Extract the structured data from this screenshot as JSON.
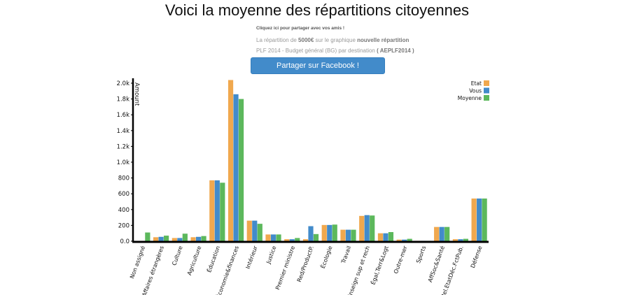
{
  "page": {
    "title": "Voici la moyenne des répartitions citoyennes",
    "share_link": "Cliquez ici pour partager avec vos amis !",
    "repartition": {
      "prefix": "La répartition de ",
      "amount": "5000€",
      "middle": " sur le graphique ",
      "highlight": "nouvelle répartition"
    },
    "plf": {
      "text": "PLF 2014 - Budget général (BG) par destination ",
      "code": "( AEPLF2014 )"
    },
    "facebook_button": "Partager sur Facebook !"
  },
  "colors": {
    "etat": "#f0a84e",
    "vous": "#428bca",
    "moyenne": "#5cb85c",
    "axis": "#000000"
  },
  "chart_data": {
    "type": "bar",
    "ylabel": "Amount",
    "ylim": [
      0,
      2000
    ],
    "yticks": [
      0,
      200,
      400,
      600,
      800,
      1000,
      1200,
      1400,
      1600,
      1800,
      2000
    ],
    "ytick_labels": [
      "0.0",
      "200",
      "400",
      "600",
      "800",
      "1.0k",
      "1.2k",
      "1.4k",
      "1.6k",
      "1.8k",
      "2.0k"
    ],
    "legend_position": "top-right",
    "categories": [
      "Non assigné",
      "Affaires étrangères",
      "Culture",
      "Agriculture",
      "Éducation",
      "Économie&finances",
      "Intérieur",
      "Justice",
      "Premier ministre",
      "Red/ProductP.",
      "Écologie",
      "Travail",
      "Enseign sup et rech",
      "Égal,Terr&Logt",
      "Outre-mer",
      "Sports",
      "AffSoc&Santé",
      "Rel.EtatDéc.FctPub.",
      "Défense"
    ],
    "series": [
      {
        "name": "Etat",
        "color_key": "etat",
        "values": [
          0,
          50,
          40,
          50,
          770,
          2040,
          260,
          85,
          25,
          25,
          205,
          145,
          320,
          100,
          20,
          5,
          180,
          25,
          540
        ]
      },
      {
        "name": "Vous",
        "color_key": "vous",
        "values": [
          0,
          55,
          40,
          55,
          770,
          1860,
          260,
          85,
          25,
          190,
          205,
          145,
          330,
          100,
          20,
          5,
          180,
          25,
          540
        ]
      },
      {
        "name": "Moyenne",
        "color_key": "moyenne",
        "values": [
          110,
          70,
          95,
          65,
          740,
          1800,
          220,
          85,
          40,
          90,
          210,
          145,
          325,
          115,
          30,
          5,
          180,
          30,
          540
        ]
      }
    ]
  }
}
